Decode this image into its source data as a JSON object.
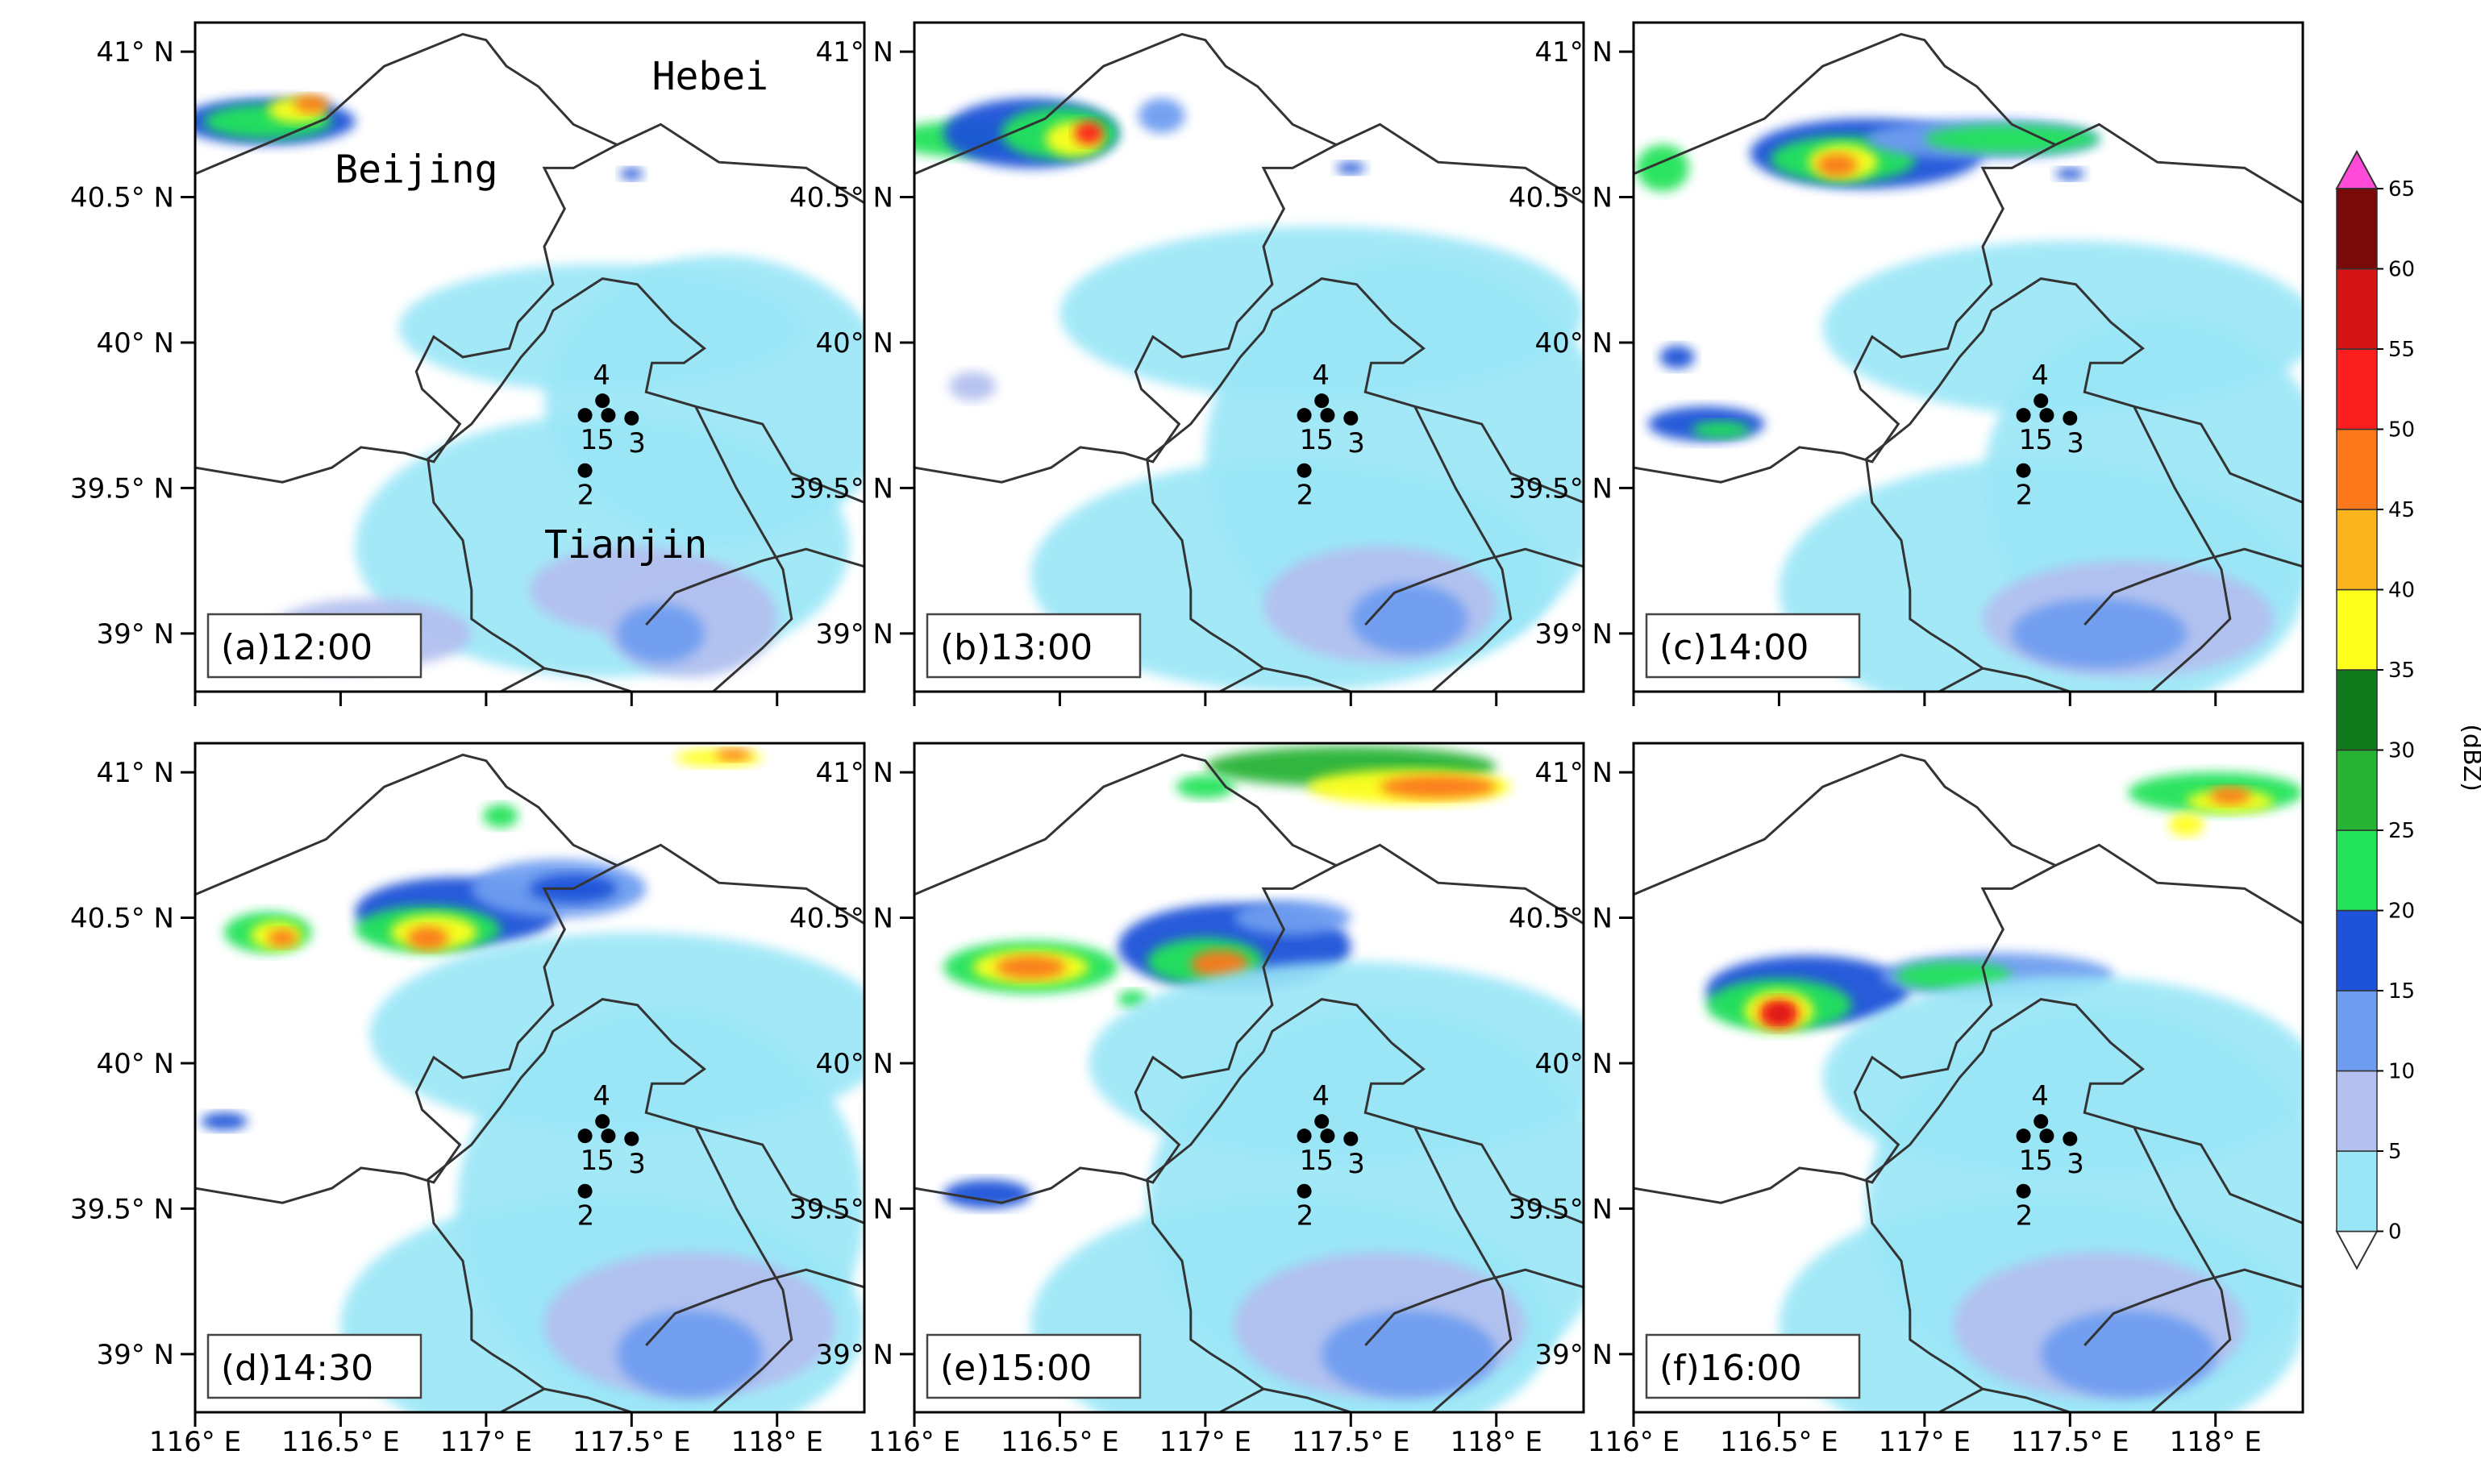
{
  "figure": {
    "x_ticks": [
      "116° E",
      "116.5° E",
      "117° E",
      "117.5° E",
      "118° E"
    ],
    "y_ticks": [
      "41° N",
      "40.5° N",
      "40° N",
      "39.5° N",
      "39° N"
    ],
    "panels": [
      {
        "label": "(a)12:00"
      },
      {
        "label": "(b)13:00"
      },
      {
        "label": "(c)14:00"
      },
      {
        "label": "(d)14:30"
      },
      {
        "label": "(e)15:00"
      },
      {
        "label": "(f)16:00"
      }
    ],
    "regions": [
      {
        "name": "Hebei",
        "lon": 117.57,
        "lat": 40.87
      },
      {
        "name": "Beijing",
        "lon": 116.48,
        "lat": 40.55
      },
      {
        "name": "Tianjin",
        "lon": 117.2,
        "lat": 39.26
      }
    ],
    "stations": [
      {
        "id": "1",
        "lon": 117.34,
        "lat": 39.75
      },
      {
        "id": "2",
        "lon": 117.34,
        "lat": 39.56
      },
      {
        "id": "3",
        "lon": 117.5,
        "lat": 39.74
      },
      {
        "id": "4",
        "lon": 117.4,
        "lat": 39.8
      },
      {
        "id": "5",
        "lon": 117.42,
        "lat": 39.75
      }
    ],
    "colorbar": {
      "title": "(dBZ)",
      "ticks": [
        "0",
        "5",
        "10",
        "15",
        "20",
        "25",
        "30",
        "35",
        "40",
        "45",
        "50",
        "55",
        "60",
        "65"
      ],
      "colors": [
        "#9ae6f7",
        "#b3c0ef",
        "#6e9df0",
        "#1e52d8",
        "#22e35a",
        "#27b334",
        "#117a1c",
        "#ffff1e",
        "#fbb41c",
        "#fb781b",
        "#fb1e1e",
        "#d51515",
        "#7a0a0a",
        "#ff4bd8"
      ]
    }
  }
}
